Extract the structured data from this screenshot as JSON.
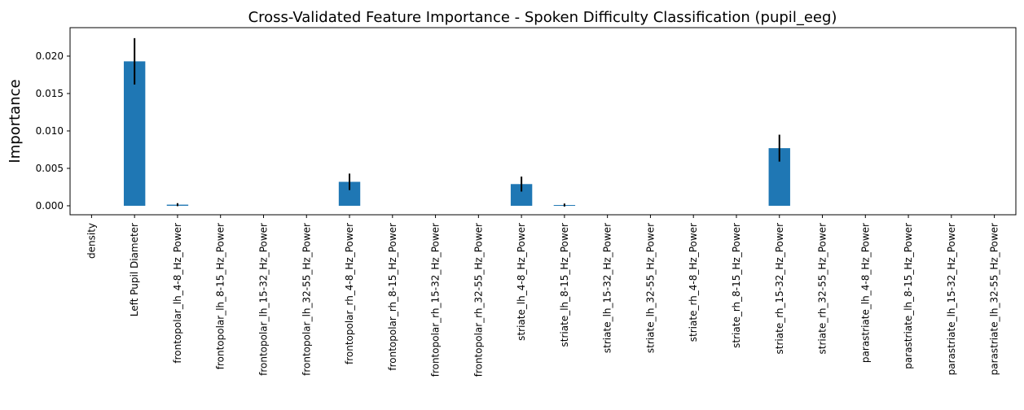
{
  "chart_data": {
    "type": "bar",
    "title": "Cross-Validated Feature Importance - Spoken Difficulty Classification (pupil_eeg)",
    "xlabel": "",
    "ylabel": "Importance",
    "ylim": [
      -0.0012,
      0.0238
    ],
    "yticks": [
      "0.000",
      "0.005",
      "0.010",
      "0.015",
      "0.020"
    ],
    "ytick_values": [
      0,
      0.005,
      0.01,
      0.015,
      0.02
    ],
    "grid": false,
    "legend": "none",
    "bar_color": "#1f77b4",
    "error_color": "#000000",
    "categories": [
      "density",
      "Left Pupil Diameter",
      "frontopolar_lh_4-8_Hz_Power",
      "frontopolar_lh_8-15_Hz_Power",
      "frontopolar_lh_15-32_Hz_Power",
      "frontopolar_lh_32-55_Hz_Power",
      "frontopolar_rh_4-8_Hz_Power",
      "frontopolar_rh_8-15_Hz_Power",
      "frontopolar_rh_15-32_Hz_Power",
      "frontopolar_rh_32-55_Hz_Power",
      "striate_lh_4-8_Hz_Power",
      "striate_lh_8-15_Hz_Power",
      "striate_lh_15-32_Hz_Power",
      "striate_lh_32-55_Hz_Power",
      "striate_rh_4-8_Hz_Power",
      "striate_rh_8-15_Hz_Power",
      "striate_rh_15-32_Hz_Power",
      "striate_rh_32-55_Hz_Power",
      "parastriate_lh_4-8_Hz_Power",
      "parastriate_lh_8-15_Hz_Power",
      "parastriate_lh_15-32_Hz_Power",
      "parastriate_lh_32-55_Hz_Power"
    ],
    "values": [
      0,
      0.0193,
      0.00015,
      0,
      0,
      0,
      0.0032,
      0,
      0,
      0,
      0.0029,
      0.0001,
      0,
      0,
      0,
      0,
      0.0077,
      0,
      0,
      0,
      0,
      0
    ],
    "errors": [
      0,
      0.0031,
      0.0002,
      0,
      0,
      0,
      0.0011,
      0,
      0,
      0,
      0.001,
      0.0002,
      0,
      0,
      0,
      0,
      0.0018,
      0,
      0,
      0,
      0,
      0
    ]
  }
}
